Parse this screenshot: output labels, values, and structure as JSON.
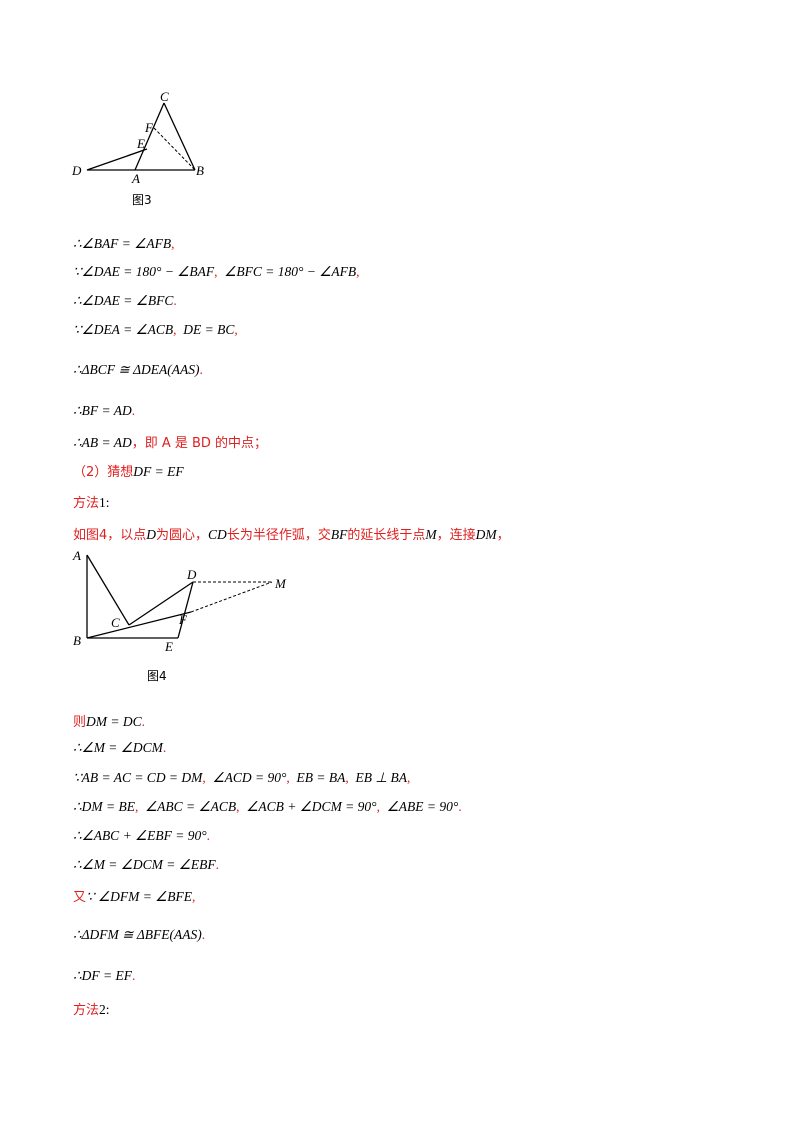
{
  "figure3": {
    "caption": "图3",
    "labels": {
      "C": "C",
      "F": "F",
      "E": "E",
      "D": "D",
      "A": "A",
      "B": "B"
    }
  },
  "lines1": [
    {
      "math": "∴∠BAF = ∠AFB",
      "punct": ","
    },
    {
      "math": "∵∠DAE = 180° − ∠BAF",
      "punct": ",",
      "math2": "∠BFC = 180° − ∠AFB",
      "punct2": ","
    },
    {
      "math": "∴∠DAE = ∠BFC",
      "punct": "."
    },
    {
      "math": "∵∠DEA = ∠ACB",
      "punct": ",",
      "math2": "DE = BC",
      "punct2": ","
    },
    {
      "math": "∴ΔBCF ≅ ΔDEA(AAS)",
      "punct": "."
    },
    {
      "math": "∴BF = AD",
      "punct": "."
    },
    {
      "math": "∴AB = AD",
      "rest": "，即 A 是 BD 的中点；"
    }
  ],
  "part2": {
    "label": "（2）猜想",
    "math": "DF = EF"
  },
  "method1": {
    "label": "方法",
    "num": "1:"
  },
  "construct": {
    "prefix": "如图4，以点",
    "p1": "D",
    "t1": "为圆心，",
    "p2": "CD",
    "t2": "长为半径作弧，交",
    "p3": "BF",
    "t3": "的延长线于点",
    "p4": "M",
    "t4": "，连接",
    "p5": "DM",
    "t5": "，"
  },
  "figure4": {
    "caption": "图4",
    "labels": {
      "A": "A",
      "D": "D",
      "M": "M",
      "C": "C",
      "F": "F",
      "B": "B",
      "E": "E"
    }
  },
  "lines2": [
    {
      "pre": "则",
      "math": "DM = DC",
      "punct": "."
    },
    {
      "math": "∴∠M = ∠DCM",
      "punct": "."
    },
    {
      "math": "∵AB = AC = CD = DM",
      "punct": ",",
      "math2": "∠ACD = 90°",
      "punct2": ",",
      "math3": "EB = BA",
      "punct3": ",",
      "math4": "EB ⊥ BA",
      "punct4": ","
    },
    {
      "math": "∴DM = BE",
      "punct": ",",
      "math2": "∠ABC = ∠ACB",
      "punct2": ",",
      "math3": "∠ACB + ∠DCM = 90°",
      "punct3": ",",
      "math4": "∠ABE = 90°",
      "punct4": "."
    },
    {
      "math": "∴∠ABC + ∠EBF = 90°",
      "punct": "."
    },
    {
      "math": "∴∠M = ∠DCM = ∠EBF",
      "punct": "."
    },
    {
      "pre": "又",
      "math": "∵ ∠DFM = ∠BFE",
      "punct": ","
    },
    {
      "math": "∴ΔDFM ≅ ΔBFE(AAS)",
      "punct": "."
    },
    {
      "math": "∴DF = EF",
      "punct": "."
    }
  ],
  "method2": {
    "label": "方法",
    "num": "2:"
  }
}
